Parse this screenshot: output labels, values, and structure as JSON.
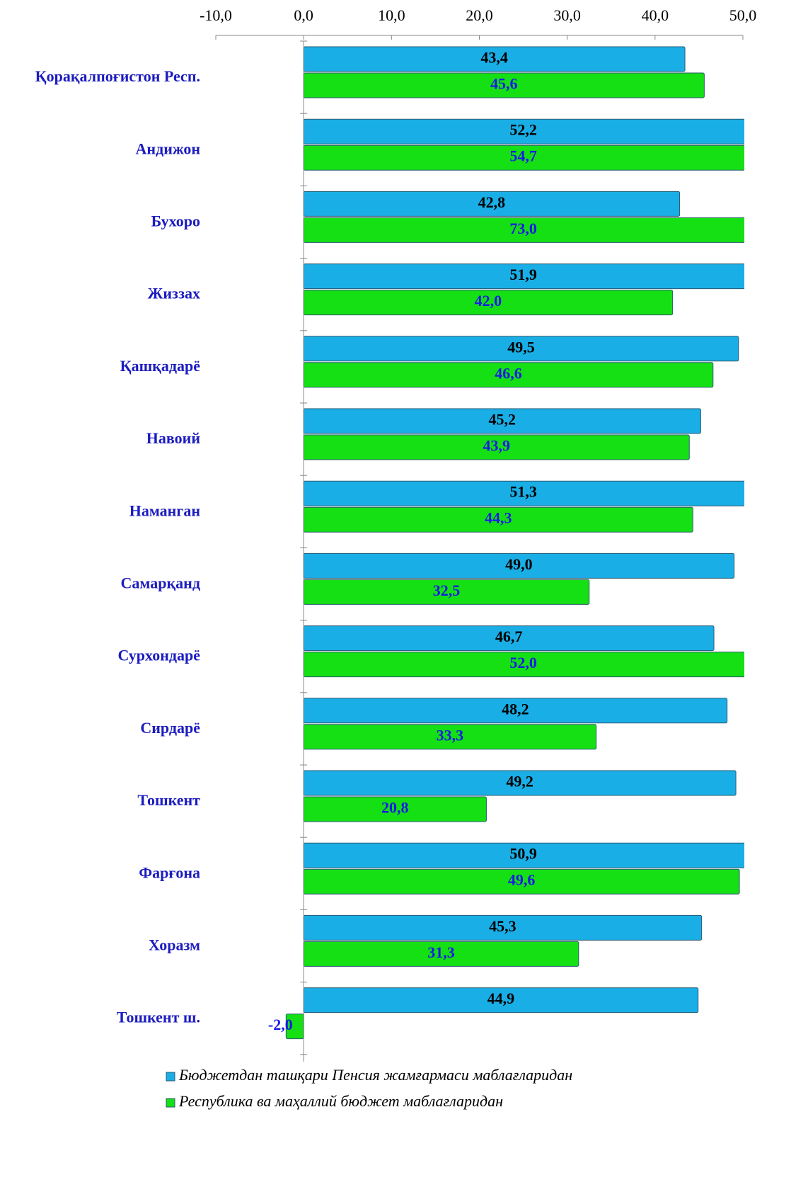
{
  "chart_data": {
    "type": "bar",
    "categories": [
      "Қорақалпоғистон  Респ.",
      "Андижон",
      "Бухоро",
      "Жиззах",
      "Қашқадарё",
      "Навоий",
      "Наманган",
      "Самарқанд",
      "Сурхондарё",
      "Сирдарё",
      "Тошкент",
      "Фарғона",
      "Хоразм",
      "Тошкент ш."
    ],
    "series": [
      {
        "name": "Бюджетдан ташқари Пенсия жамғармаси маблағларидан",
        "color": "#1aaee6",
        "values": [
          43.4,
          52.2,
          42.8,
          51.9,
          49.5,
          45.2,
          51.3,
          49.0,
          46.7,
          48.2,
          49.2,
          50.9,
          45.3,
          44.9
        ],
        "value_labels": [
          "43,4",
          "52,2",
          "42,8",
          "51,9",
          "49,5",
          "45,2",
          "51,3",
          "49,0",
          "46,7",
          "48,2",
          "49,2",
          "50,9",
          "45,3",
          "44,9"
        ]
      },
      {
        "name": "Республика ва маҳаллий бюджет маблағларидан",
        "color": "#14e014",
        "values": [
          45.6,
          54.7,
          73.0,
          42.0,
          46.6,
          43.9,
          44.3,
          32.5,
          52.0,
          33.3,
          20.8,
          49.6,
          31.3,
          -2.0
        ],
        "value_labels": [
          "45,6",
          "54,7",
          "73,0",
          "42,0",
          "46,6",
          "43,9",
          "44,3",
          "32,5",
          "52,0",
          "33,3",
          "20,8",
          "49,6",
          "31,3",
          "-2,0"
        ]
      }
    ],
    "xlim": [
      -10,
      50
    ],
    "xticks": [
      {
        "value": -10,
        "label": "-10,0"
      },
      {
        "value": 0,
        "label": "0,0"
      },
      {
        "value": 10,
        "label": "10,0"
      },
      {
        "value": 20,
        "label": "20,0"
      },
      {
        "value": 30,
        "label": "30,0"
      },
      {
        "value": 40,
        "label": "40,0"
      },
      {
        "value": 50,
        "label": "50,0"
      }
    ]
  }
}
